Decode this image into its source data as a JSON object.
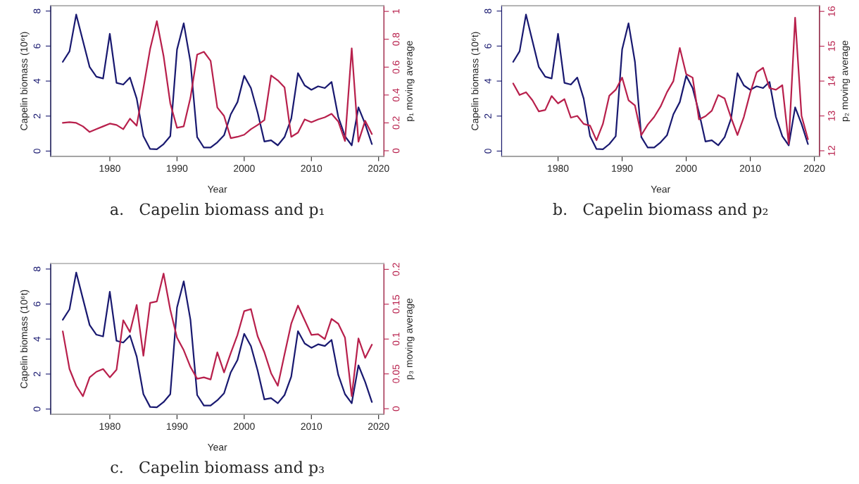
{
  "chart_data": [
    {
      "type": "line",
      "title": "a.   Capelin biomass and p₁",
      "xlabel": "Year",
      "ylabel": "Capelin biomass (10⁶t)",
      "y2label": "p₁ moving average",
      "x": [
        1973,
        1974,
        1975,
        1976,
        1977,
        1978,
        1979,
        1980,
        1981,
        1982,
        1983,
        1984,
        1985,
        1986,
        1987,
        1988,
        1989,
        1990,
        1991,
        1992,
        1993,
        1994,
        1995,
        1996,
        1997,
        1998,
        1999,
        2000,
        2001,
        2002,
        2003,
        2004,
        2005,
        2006,
        2007,
        2008,
        2009,
        2010,
        2011,
        2012,
        2013,
        2014,
        2015,
        2016,
        2017,
        2018,
        2019
      ],
      "xlim": [
        1971.2,
        2020.8
      ],
      "xticks": [
        1980,
        1990,
        2000,
        2010,
        2020
      ],
      "ylim": [
        -0.3,
        8.3
      ],
      "yticks": [
        0,
        2,
        4,
        6,
        8
      ],
      "y2lim": [
        -0.04,
        1.04
      ],
      "y2ticks": [
        0,
        0.2,
        0.4,
        0.6,
        0.8,
        1
      ],
      "series": [
        {
          "color": "#191970",
          "values": [
            5.1,
            5.7,
            7.8,
            6.3,
            4.8,
            4.25,
            4.15,
            6.7,
            3.9,
            3.8,
            4.2,
            3.0,
            0.85,
            0.12,
            0.1,
            0.4,
            0.85,
            5.8,
            7.3,
            5.1,
            0.8,
            0.2,
            0.2,
            0.5,
            0.9,
            2.1,
            2.8,
            4.3,
            3.6,
            2.2,
            0.55,
            0.62,
            0.33,
            0.8,
            1.85,
            4.45,
            3.75,
            3.5,
            3.7,
            3.6,
            3.95,
            1.95,
            0.85,
            0.33,
            2.5,
            1.55,
            0.4
          ]
        },
        {
          "color": "#b8204c",
          "axis": "y2",
          "values": [
            0.2,
            0.205,
            0.2,
            0.175,
            0.135,
            0.155,
            0.175,
            0.195,
            0.185,
            0.155,
            0.23,
            0.18,
            0.45,
            0.73,
            0.93,
            0.68,
            0.34,
            0.165,
            0.175,
            0.38,
            0.69,
            0.71,
            0.645,
            0.31,
            0.25,
            0.09,
            0.1,
            0.115,
            0.155,
            0.185,
            0.22,
            0.54,
            0.505,
            0.455,
            0.1,
            0.13,
            0.225,
            0.205,
            0.225,
            0.24,
            0.265,
            0.21,
            0.07,
            0.735,
            0.065,
            0.215,
            0.12
          ]
        }
      ]
    },
    {
      "type": "line",
      "title": "b.   Capelin biomass and p₂",
      "xlabel": "Year",
      "ylabel": "Capelin biomass (10⁶t)",
      "y2label": "p₂ moving average",
      "x": [
        1973,
        1974,
        1975,
        1976,
        1977,
        1978,
        1979,
        1980,
        1981,
        1982,
        1983,
        1984,
        1985,
        1986,
        1987,
        1988,
        1989,
        1990,
        1991,
        1992,
        1993,
        1994,
        1995,
        1996,
        1997,
        1998,
        1999,
        2000,
        2001,
        2002,
        2003,
        2004,
        2005,
        2006,
        2007,
        2008,
        2009,
        2010,
        2011,
        2012,
        2013,
        2014,
        2015,
        2016,
        2017,
        2018,
        2019
      ],
      "xlim": [
        1971.2,
        2020.8
      ],
      "xticks": [
        1980,
        1990,
        2000,
        2010,
        2020
      ],
      "ylim": [
        -0.3,
        8.3
      ],
      "yticks": [
        0,
        2,
        4,
        6,
        8
      ],
      "y2lim": [
        11.84,
        16.16
      ],
      "y2ticks": [
        12,
        13,
        14,
        15,
        16
      ],
      "series": [
        {
          "color": "#191970",
          "values": [
            5.1,
            5.7,
            7.8,
            6.3,
            4.8,
            4.25,
            4.15,
            6.7,
            3.9,
            3.8,
            4.2,
            3.0,
            0.85,
            0.12,
            0.1,
            0.4,
            0.85,
            5.8,
            7.3,
            5.1,
            0.8,
            0.2,
            0.2,
            0.5,
            0.9,
            2.1,
            2.8,
            4.3,
            3.6,
            2.2,
            0.55,
            0.62,
            0.33,
            0.8,
            1.85,
            4.45,
            3.75,
            3.5,
            3.7,
            3.6,
            3.95,
            1.95,
            0.85,
            0.33,
            2.5,
            1.55,
            0.4
          ]
        },
        {
          "color": "#b8204c",
          "axis": "y2",
          "values": [
            13.93,
            13.6,
            13.68,
            13.45,
            13.13,
            13.17,
            13.57,
            13.36,
            13.48,
            12.95,
            13.0,
            12.77,
            12.72,
            12.3,
            12.77,
            13.58,
            13.75,
            14.1,
            13.45,
            13.3,
            12.45,
            12.75,
            12.97,
            13.27,
            13.68,
            14.0,
            14.95,
            14.2,
            14.1,
            12.9,
            12.99,
            13.15,
            13.6,
            13.5,
            12.95,
            12.45,
            12.97,
            13.67,
            14.25,
            14.38,
            13.8,
            13.75,
            13.88,
            12.2,
            15.82,
            13.0,
            12.33
          ]
        }
      ]
    },
    {
      "type": "line",
      "title": "c.   Capelin biomass and p₃",
      "xlabel": "Year",
      "ylabel": "Capelin biomass (10⁶t)",
      "y2label": "p₃ moving average",
      "x": [
        1973,
        1974,
        1975,
        1976,
        1977,
        1978,
        1979,
        1980,
        1981,
        1982,
        1983,
        1984,
        1985,
        1986,
        1987,
        1988,
        1989,
        1990,
        1991,
        1992,
        1993,
        1994,
        1995,
        1996,
        1997,
        1998,
        1999,
        2000,
        2001,
        2002,
        2003,
        2004,
        2005,
        2006,
        2007,
        2008,
        2009,
        2010,
        2011,
        2012,
        2013,
        2014,
        2015,
        2016,
        2017,
        2018,
        2019
      ],
      "xlim": [
        1971.2,
        2020.8
      ],
      "xticks": [
        1980,
        1990,
        2000,
        2010,
        2020
      ],
      "ylim": [
        -0.3,
        8.3
      ],
      "yticks": [
        0,
        2,
        4,
        6,
        8
      ],
      "y2lim": [
        -0.008,
        0.208
      ],
      "y2ticks": [
        0,
        0.05,
        0.1,
        0.15,
        0.2
      ],
      "series": [
        {
          "color": "#191970",
          "values": [
            5.1,
            5.7,
            7.8,
            6.3,
            4.8,
            4.25,
            4.15,
            6.7,
            3.9,
            3.8,
            4.2,
            3.0,
            0.85,
            0.12,
            0.1,
            0.4,
            0.85,
            5.8,
            7.3,
            5.1,
            0.8,
            0.2,
            0.2,
            0.5,
            0.9,
            2.1,
            2.8,
            4.3,
            3.6,
            2.2,
            0.55,
            0.62,
            0.33,
            0.8,
            1.85,
            4.45,
            3.75,
            3.5,
            3.7,
            3.6,
            3.95,
            1.95,
            0.85,
            0.33,
            2.5,
            1.55,
            0.4
          ]
        },
        {
          "color": "#b8204c",
          "axis": "y2",
          "values": [
            0.111,
            0.057,
            0.033,
            0.018,
            0.045,
            0.053,
            0.057,
            0.045,
            0.056,
            0.127,
            0.11,
            0.149,
            0.076,
            0.152,
            0.154,
            0.194,
            0.142,
            0.102,
            0.084,
            0.06,
            0.043,
            0.045,
            0.042,
            0.081,
            0.052,
            0.08,
            0.106,
            0.14,
            0.143,
            0.104,
            0.081,
            0.051,
            0.033,
            0.078,
            0.122,
            0.148,
            0.127,
            0.106,
            0.107,
            0.1,
            0.129,
            0.122,
            0.102,
            0.018,
            0.101,
            0.073,
            0.092
          ]
        }
      ]
    }
  ]
}
